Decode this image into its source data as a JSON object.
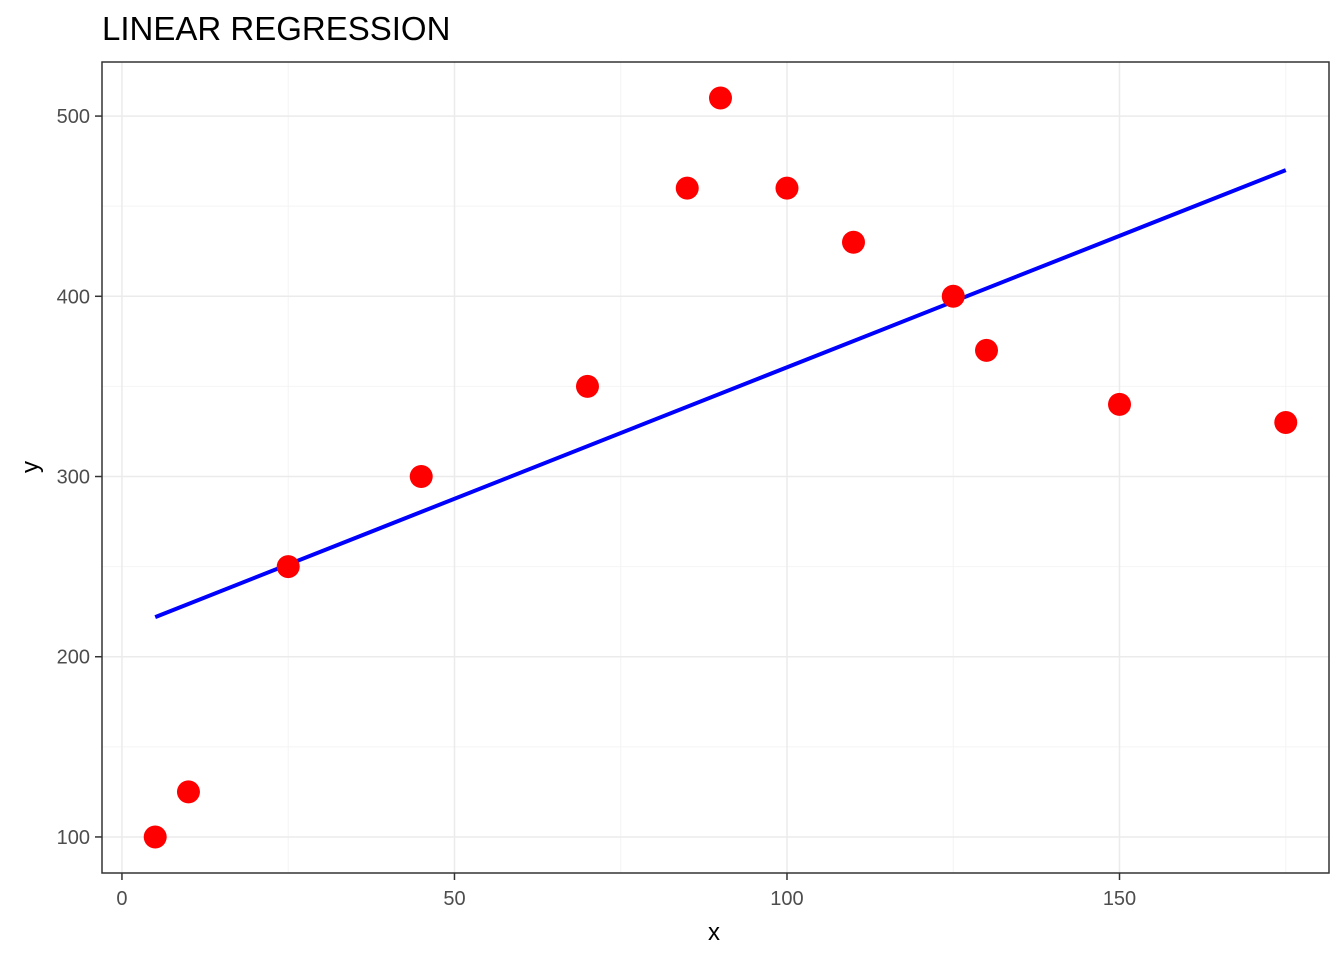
{
  "chart_data": {
    "type": "scatter",
    "title": "LINEAR REGRESSION",
    "xlabel": "x",
    "ylabel": "y",
    "xlim": [
      -3,
      181.5
    ],
    "ylim": [
      80,
      530
    ],
    "x_ticks": [
      0,
      50,
      100,
      150
    ],
    "x_tick_labels": [
      "0",
      "50",
      "100",
      "150"
    ],
    "y_ticks": [
      100,
      200,
      300,
      400,
      500
    ],
    "y_tick_labels": [
      "100",
      "200",
      "300",
      "400",
      "500"
    ],
    "x_minor_gridlines": [
      25,
      75,
      125,
      175
    ],
    "y_minor_gridlines": [
      150,
      250,
      350,
      450
    ],
    "grid": true,
    "legend": "none",
    "series": [
      {
        "type": "scatter",
        "color": "#ff0000",
        "points": [
          {
            "x": 5,
            "y": 100
          },
          {
            "x": 10,
            "y": 125
          },
          {
            "x": 25,
            "y": 250
          },
          {
            "x": 45,
            "y": 300
          },
          {
            "x": 70,
            "y": 350
          },
          {
            "x": 85,
            "y": 460
          },
          {
            "x": 90,
            "y": 510
          },
          {
            "x": 100,
            "y": 460
          },
          {
            "x": 110,
            "y": 430
          },
          {
            "x": 125,
            "y": 400
          },
          {
            "x": 130,
            "y": 370
          },
          {
            "x": 150,
            "y": 340
          },
          {
            "x": 175,
            "y": 330
          }
        ]
      },
      {
        "type": "line",
        "color": "#0000ff",
        "points": [
          {
            "x": 5,
            "y": 222
          },
          {
            "x": 175,
            "y": 470
          }
        ]
      }
    ],
    "colors": {
      "background": "#ffffff",
      "panel_border": "#333333",
      "grid_major": "#ebebeb",
      "grid_minor": "#f4f4f4",
      "tick_text": "#4d4d4d",
      "tick_mark": "#333333"
    }
  }
}
